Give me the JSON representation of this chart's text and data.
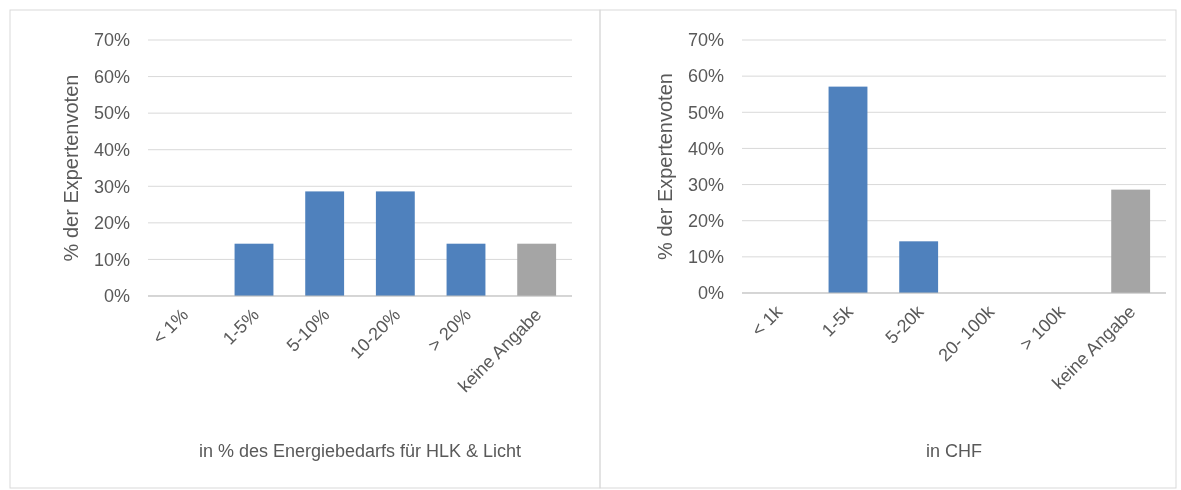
{
  "chart_data": [
    {
      "type": "bar",
      "xlabel": "in % des Energiebedarfs für HLK & Licht",
      "ylabel": "% der Expertenvoten",
      "categories": [
        "< 1%",
        "1-5%",
        "5-10%",
        "10-20%",
        "> 20%",
        "keine Angabe"
      ],
      "values": [
        0,
        14.3,
        28.6,
        28.6,
        14.3,
        14.3
      ],
      "colors": [
        "#4f81bd",
        "#4f81bd",
        "#4f81bd",
        "#4f81bd",
        "#4f81bd",
        "#a5a5a5"
      ],
      "ylim": [
        0,
        70
      ],
      "yticks": [
        {
          "value": 0,
          "label": "0%"
        },
        {
          "value": 10,
          "label": "10%"
        },
        {
          "value": 20,
          "label": "20%"
        },
        {
          "value": 30,
          "label": "30%"
        },
        {
          "value": 40,
          "label": "40%"
        },
        {
          "value": 50,
          "label": "50%"
        },
        {
          "value": 60,
          "label": "60%"
        },
        {
          "value": 70,
          "label": "70%"
        }
      ],
      "grid": "y"
    },
    {
      "type": "bar",
      "xlabel": "in CHF",
      "ylabel": "% der Expertenvoten",
      "categories": [
        "< 1k",
        "1-5k",
        "5-20k",
        "20- 100k",
        "> 100k",
        "keine Angabe"
      ],
      "values": [
        0,
        57.1,
        14.3,
        0,
        0,
        28.6
      ],
      "colors": [
        "#4f81bd",
        "#4f81bd",
        "#4f81bd",
        "#4f81bd",
        "#4f81bd",
        "#a5a5a5"
      ],
      "ylim": [
        0,
        70
      ],
      "yticks": [
        {
          "value": 0,
          "label": "0%"
        },
        {
          "value": 10,
          "label": "10%"
        },
        {
          "value": 20,
          "label": "20%"
        },
        {
          "value": 30,
          "label": "30%"
        },
        {
          "value": 40,
          "label": "40%"
        },
        {
          "value": 50,
          "label": "50%"
        },
        {
          "value": 60,
          "label": "60%"
        },
        {
          "value": 70,
          "label": "70%"
        }
      ],
      "grid": "y"
    }
  ]
}
